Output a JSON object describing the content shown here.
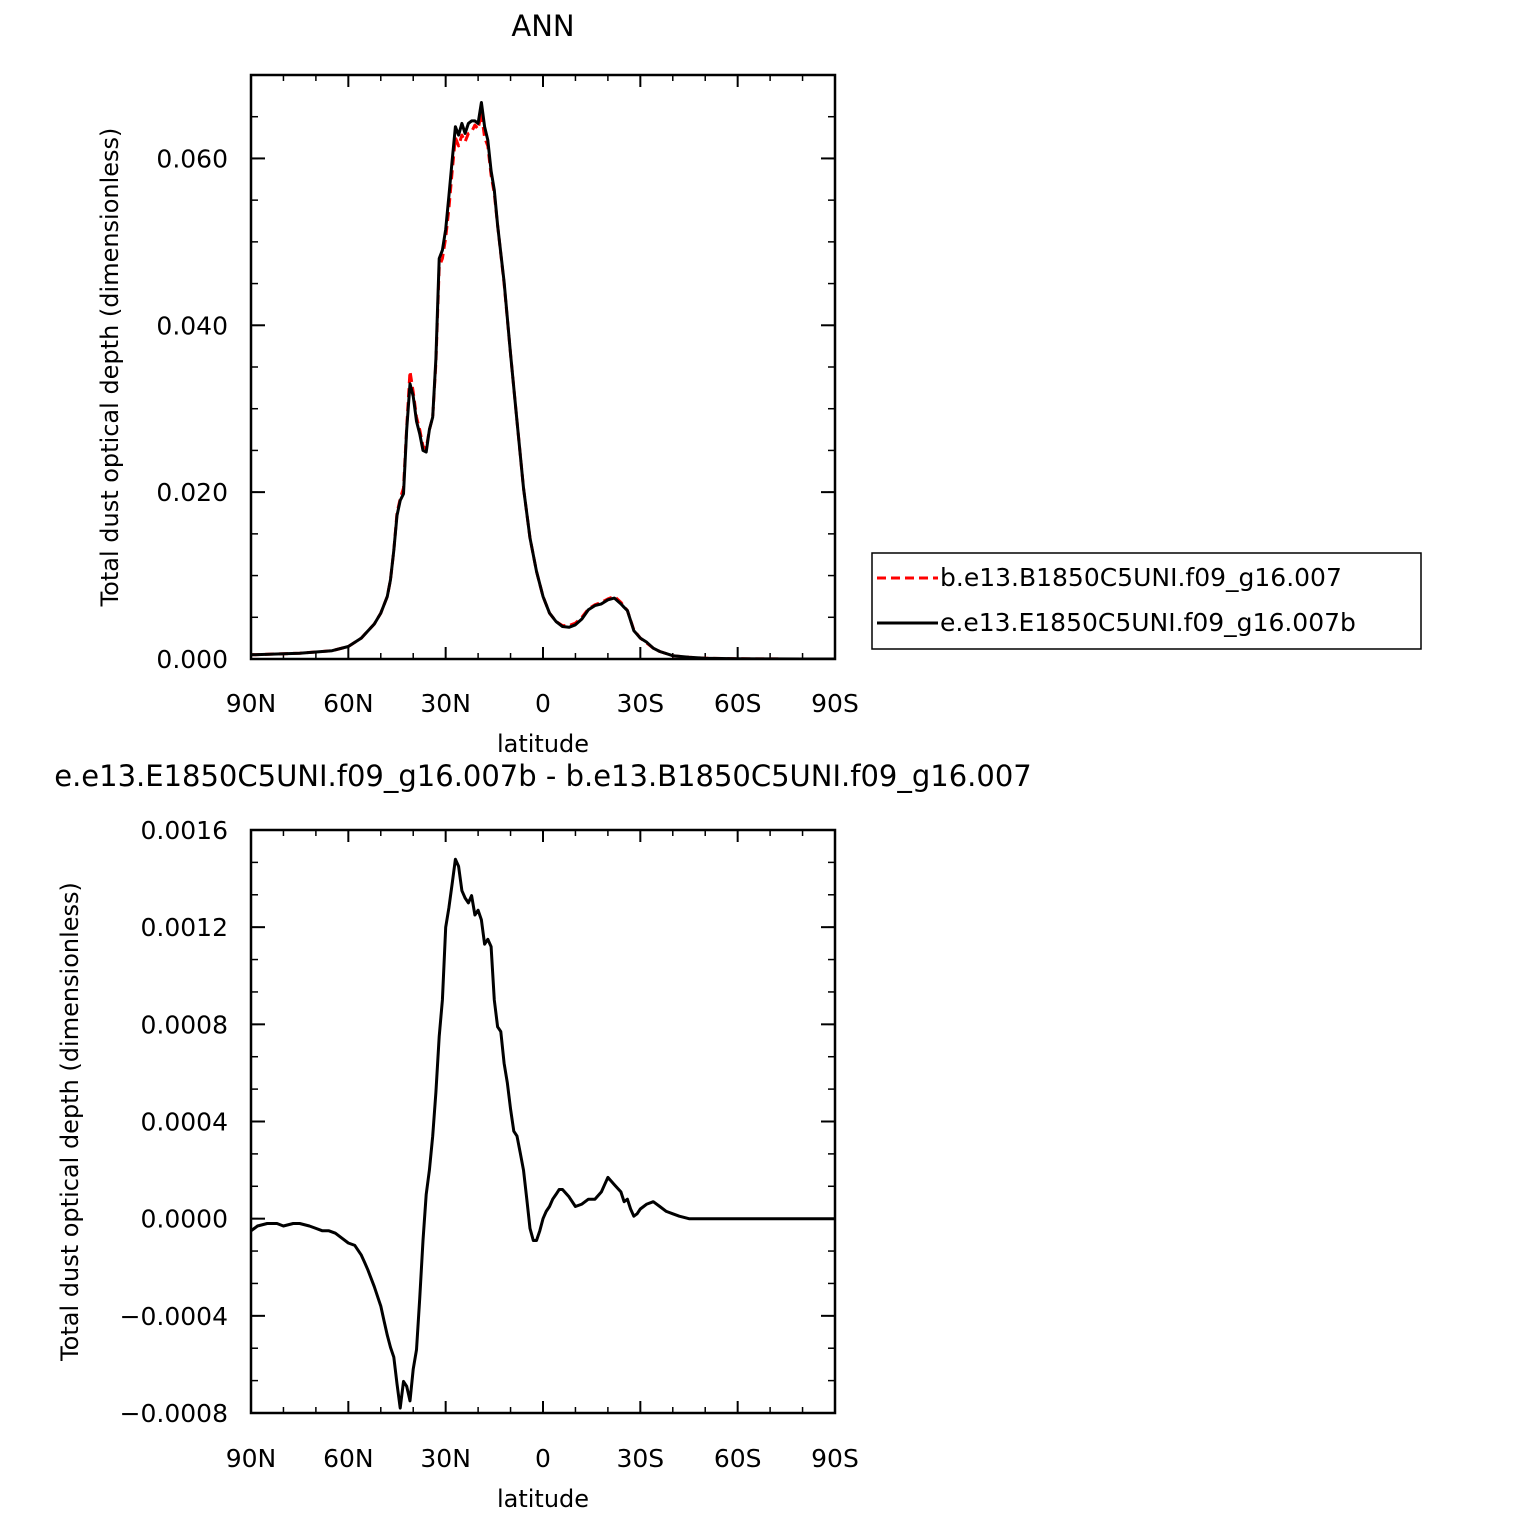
{
  "chart_data": [
    {
      "type": "line",
      "title": "ANN",
      "xlabel": "latitude",
      "ylabel": "Total dust optical depth (dimensionless)",
      "xlim": [
        90,
        -90
      ],
      "ylim": [
        0,
        0.07
      ],
      "x_ticks": [
        90,
        60,
        30,
        0,
        -30,
        -60,
        -90
      ],
      "x_tick_labels": [
        "90N",
        "60N",
        "30N",
        "0",
        "30S",
        "60S",
        "90S"
      ],
      "y_ticks": [
        0,
        0.02,
        0.04,
        0.06
      ],
      "y_tick_labels": [
        "0.000",
        "0.020",
        "0.040",
        "0.060"
      ],
      "legend": {
        "placement": "right",
        "entries": [
          "b.e13.B1850C5UNI.f09_g16.007",
          "e.e13.E1850C5UNI.f09_g16.007b"
        ]
      },
      "series": [
        {
          "name": "b.e13.B1850C5UNI.f09_g16.007",
          "color": "#ff0000",
          "dash": "dashed",
          "x": [
            90,
            75,
            65,
            60,
            56,
            52,
            50,
            48,
            47,
            46,
            45,
            44,
            43,
            42,
            41,
            40,
            39,
            38,
            37,
            36,
            35,
            34,
            33,
            32,
            31,
            30,
            29,
            28,
            27,
            26,
            25,
            24,
            23,
            22,
            21,
            20,
            19,
            18,
            17,
            16,
            15,
            14,
            12,
            10,
            8,
            6,
            4,
            2,
            0,
            -2,
            -4,
            -6,
            -8,
            -10,
            -12,
            -14,
            -16,
            -18,
            -20,
            -22,
            -24,
            -25,
            -26,
            -28,
            -30,
            -32,
            -34,
            -36,
            -40,
            -45,
            -50,
            -60,
            -70,
            -80,
            -90
          ],
          "y": [
            0.0005,
            0.0007,
            0.001,
            0.0015,
            0.0025,
            0.0042,
            0.0055,
            0.0075,
            0.0095,
            0.013,
            0.0175,
            0.0192,
            0.0205,
            0.0278,
            0.0345,
            0.032,
            0.029,
            0.0275,
            0.0255,
            0.0252,
            0.0275,
            0.029,
            0.0355,
            0.047,
            0.048,
            0.0505,
            0.054,
            0.0585,
            0.0625,
            0.0615,
            0.0628,
            0.062,
            0.063,
            0.0632,
            0.064,
            0.0635,
            0.0655,
            0.0625,
            0.0615,
            0.058,
            0.0558,
            0.052,
            0.045,
            0.0365,
            0.0285,
            0.0205,
            0.0145,
            0.0105,
            0.0075,
            0.0055,
            0.0045,
            0.004,
            0.004,
            0.0043,
            0.005,
            0.006,
            0.0065,
            0.0068,
            0.0072,
            0.0075,
            0.0068,
            0.0063,
            0.0058,
            0.0035,
            0.0025,
            0.0019,
            0.0013,
            0.0009,
            0.0004,
            0.0002,
            0.0001,
            2e-05,
            1e-05,
            0,
            0
          ]
        },
        {
          "name": "e.e13.E1850C5UNI.f09_g16.007b",
          "color": "#000000",
          "dash": "solid",
          "x": [
            90,
            75,
            65,
            60,
            56,
            52,
            50,
            48,
            47,
            46,
            45,
            44,
            43,
            42,
            41,
            40,
            39,
            38,
            37,
            36,
            35,
            34,
            33,
            32,
            31,
            30,
            29,
            28,
            27,
            26,
            25,
            24,
            23,
            22,
            21,
            20,
            19,
            18,
            17,
            16,
            15,
            14,
            12,
            10,
            8,
            6,
            4,
            2,
            0,
            -2,
            -4,
            -6,
            -8,
            -10,
            -12,
            -14,
            -16,
            -18,
            -20,
            -22,
            -24,
            -25,
            -26,
            -28,
            -30,
            -32,
            -34,
            -36,
            -40,
            -45,
            -50,
            -60,
            -70,
            -80,
            -90
          ],
          "y": [
            0.0005,
            0.0007,
            0.001,
            0.0015,
            0.0025,
            0.0042,
            0.0055,
            0.0075,
            0.0095,
            0.013,
            0.0172,
            0.019,
            0.0198,
            0.0275,
            0.033,
            0.0315,
            0.0285,
            0.027,
            0.025,
            0.0248,
            0.0275,
            0.029,
            0.036,
            0.048,
            0.049,
            0.0515,
            0.0555,
            0.0598,
            0.0638,
            0.0628,
            0.0642,
            0.063,
            0.0642,
            0.0645,
            0.0645,
            0.0642,
            0.0667,
            0.0638,
            0.0622,
            0.0585,
            0.0562,
            0.052,
            0.0452,
            0.0365,
            0.0285,
            0.0205,
            0.0145,
            0.0105,
            0.0075,
            0.0055,
            0.0045,
            0.0039,
            0.0038,
            0.0041,
            0.0048,
            0.0059,
            0.0064,
            0.0066,
            0.0071,
            0.0073,
            0.0066,
            0.0062,
            0.0058,
            0.0034,
            0.0025,
            0.002,
            0.0013,
            0.0009,
            0.0004,
            0.0002,
            0.0001,
            2e-05,
            1e-05,
            0,
            0
          ]
        }
      ]
    },
    {
      "type": "line",
      "title": "e.e13.E1850C5UNI.f09_g16.007b - b.e13.B1850C5UNI.f09_g16.007",
      "xlabel": "latitude",
      "ylabel": "Total dust optical depth (dimensionless)",
      "xlim": [
        90,
        -90
      ],
      "ylim": [
        -0.0008,
        0.0016
      ],
      "x_ticks": [
        90,
        60,
        30,
        0,
        -30,
        -60,
        -90
      ],
      "x_tick_labels": [
        "90N",
        "60N",
        "30N",
        "0",
        "30S",
        "60S",
        "90S"
      ],
      "y_ticks": [
        -0.0008,
        -0.0004,
        0,
        0.0004,
        0.0008,
        0.0012,
        0.0016
      ],
      "y_tick_labels": [
        "−0.0008",
        "−0.0004",
        "0.0000",
        "0.0004",
        "0.0008",
        "0.0012",
        "0.0016"
      ],
      "series": [
        {
          "color": "#000000",
          "dash": "solid",
          "x": [
            90,
            88,
            85,
            82,
            80,
            77,
            75,
            72,
            70,
            68,
            66,
            64,
            62,
            60,
            58,
            56,
            55,
            54,
            52,
            50,
            49,
            48,
            47,
            46,
            45,
            44,
            43,
            42,
            41,
            40,
            39,
            38,
            37,
            36,
            35,
            34,
            33,
            32,
            31,
            30,
            29,
            28,
            27,
            26,
            25,
            24,
            23,
            22,
            21,
            20,
            19,
            18,
            17,
            16,
            15,
            14,
            13,
            12,
            11,
            10,
            9,
            8,
            7,
            6,
            5,
            4,
            3,
            2,
            1,
            0,
            -1,
            -2,
            -3,
            -4,
            -5,
            -6,
            -8,
            -10,
            -12,
            -14,
            -16,
            -18,
            -19,
            -20,
            -22,
            -24,
            -25,
            -26,
            -27,
            -28,
            -29,
            -30,
            -31,
            -32,
            -34,
            -36,
            -38,
            -40,
            -42,
            -45,
            -50,
            -60,
            -70,
            -80,
            -90
          ],
          "y": [
            -5e-05,
            -3e-05,
            -2e-05,
            -2e-05,
            -3e-05,
            -2e-05,
            -2e-05,
            -3e-05,
            -4e-05,
            -5e-05,
            -5e-05,
            -6e-05,
            -8e-05,
            -0.0001,
            -0.00011,
            -0.00015,
            -0.00018,
            -0.00021,
            -0.00028,
            -0.00036,
            -0.00042,
            -0.00048,
            -0.00053,
            -0.00057,
            -0.00068,
            -0.00078,
            -0.00067,
            -0.00069,
            -0.00075,
            -0.00062,
            -0.00054,
            -0.00033,
            -9e-05,
            0.0001,
            0.0002,
            0.00034,
            0.00052,
            0.00075,
            0.0009,
            0.0012,
            0.00128,
            0.00138,
            0.00148,
            0.00145,
            0.00135,
            0.00132,
            0.0013,
            0.00133,
            0.00125,
            0.00127,
            0.00123,
            0.00113,
            0.00115,
            0.00112,
            0.0009,
            0.00079,
            0.00077,
            0.00064,
            0.00056,
            0.00045,
            0.00036,
            0.00034,
            0.00027,
            0.0002,
            8e-05,
            -4e-05,
            -9e-05,
            -9e-05,
            -5e-05,
            0,
            3e-05,
            5e-05,
            8e-05,
            0.0001,
            0.00012,
            0.00012,
            9e-05,
            5e-05,
            6e-05,
            8e-05,
            8e-05,
            0.00011,
            0.00014,
            0.00017,
            0.00014,
            0.00011,
            7e-05,
            8e-05,
            4e-05,
            1e-05,
            2e-05,
            4e-05,
            5e-05,
            6e-05,
            7e-05,
            5e-05,
            3e-05,
            2e-05,
            1e-05,
            0,
            0,
            0,
            0,
            0,
            0
          ]
        }
      ]
    }
  ]
}
